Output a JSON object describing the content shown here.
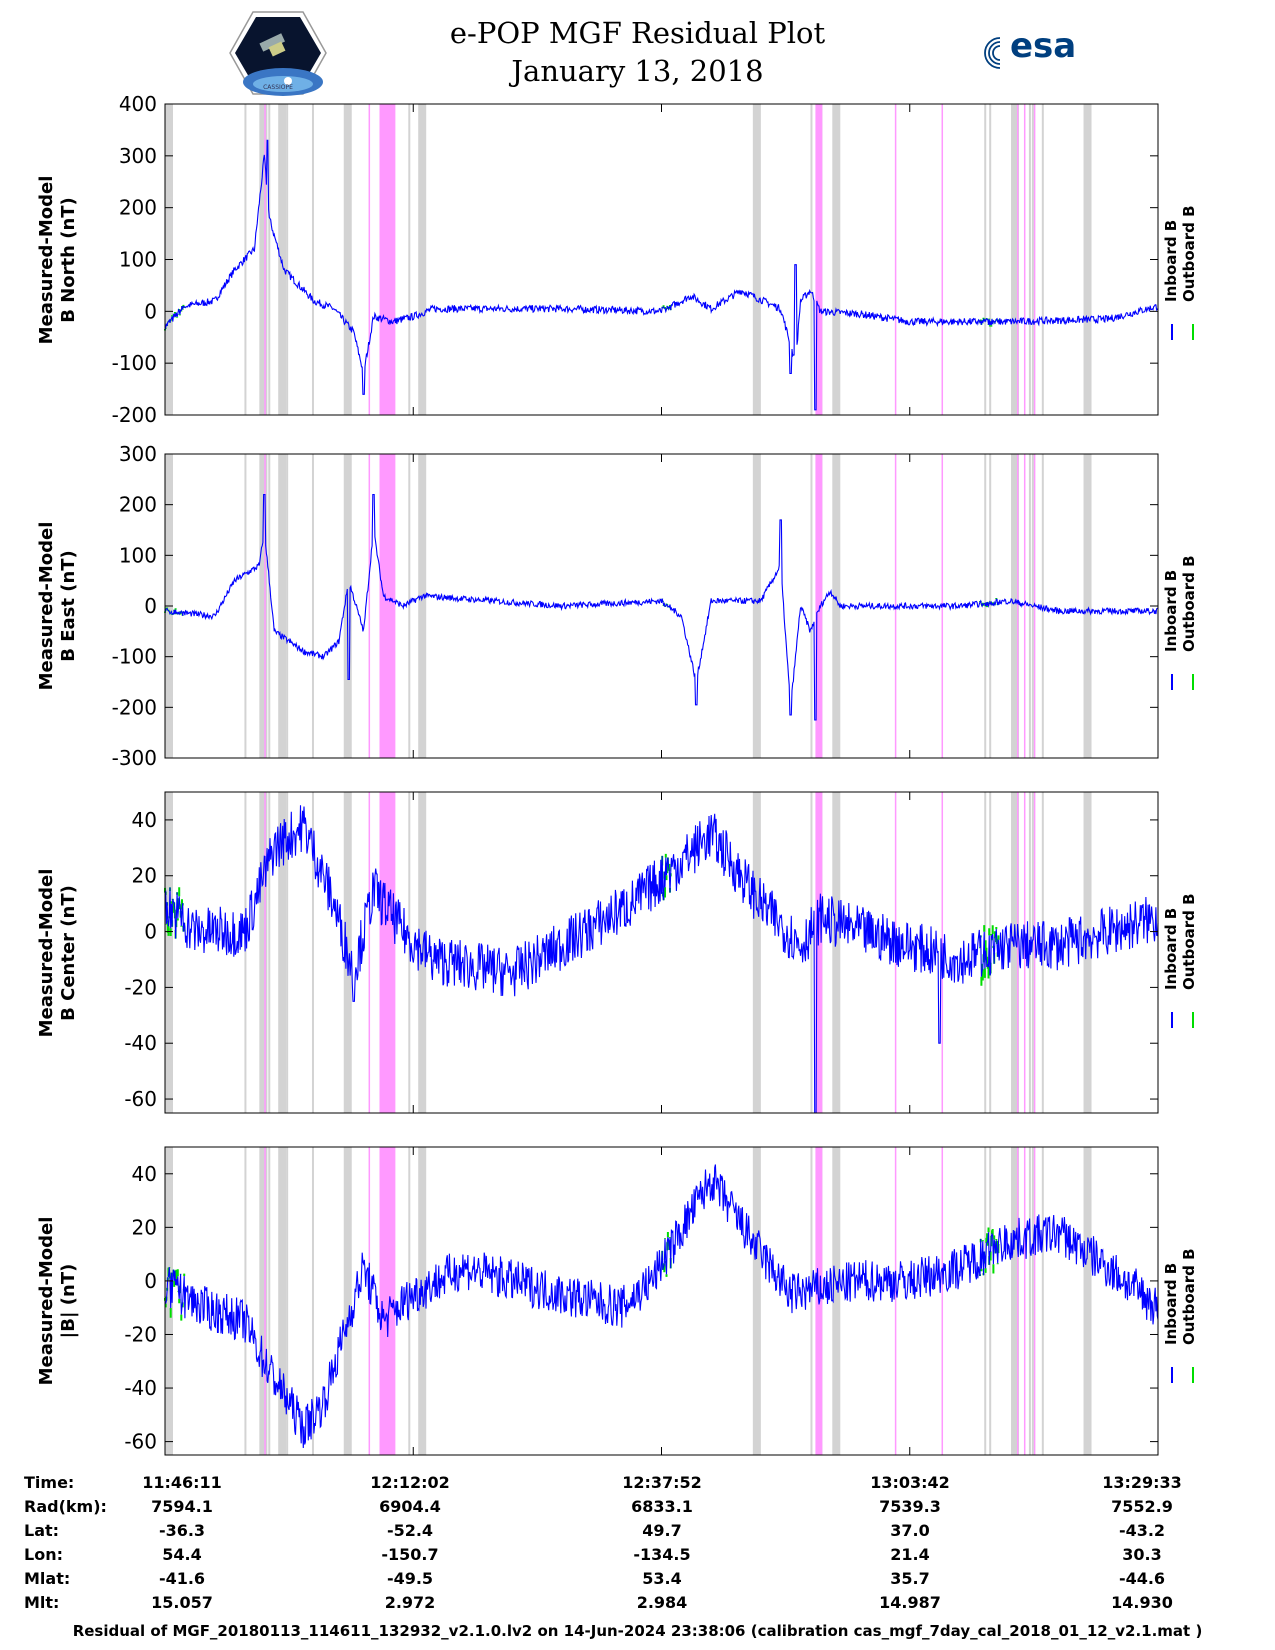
{
  "header": {
    "title_line1": "e-POP MGF Residual Plot",
    "title_line2": "January 13, 2018",
    "left_logo_text": "CASSIOPE",
    "right_logo_text": "esa"
  },
  "legend": {
    "inboard": "Inboard B",
    "outboard": "Outboard B"
  },
  "colors": {
    "inboard": "#0000ff",
    "outboard": "#00dd00",
    "gray_band": "#d3d3d3",
    "pink_band": "#ff99ff"
  },
  "chart_data": [
    {
      "type": "line",
      "ylabel_line1": "Measured-Model",
      "ylabel_line2": "B North (nT)",
      "ylim": [
        -200,
        400
      ],
      "yticks": [
        -200,
        -100,
        0,
        100,
        200,
        300,
        400
      ],
      "ytick_labels": [
        "-200",
        "-100",
        "0",
        "100",
        "200",
        "300",
        "400"
      ],
      "baseline": [
        [
          0,
          -30
        ],
        [
          0.02,
          10
        ],
        [
          0.05,
          20
        ],
        [
          0.07,
          80
        ],
        [
          0.09,
          120
        ],
        [
          0.1,
          300
        ],
        [
          0.105,
          180
        ],
        [
          0.12,
          80
        ],
        [
          0.15,
          20
        ],
        [
          0.17,
          5
        ],
        [
          0.19,
          -40
        ],
        [
          0.2,
          -120
        ],
        [
          0.21,
          -10
        ],
        [
          0.23,
          -20
        ],
        [
          0.25,
          -10
        ],
        [
          0.27,
          5
        ],
        [
          0.4,
          5
        ],
        [
          0.5,
          0
        ],
        [
          0.53,
          30
        ],
        [
          0.55,
          5
        ],
        [
          0.58,
          40
        ],
        [
          0.62,
          5
        ],
        [
          0.635,
          -100
        ],
        [
          0.64,
          20
        ],
        [
          0.65,
          40
        ],
        [
          0.66,
          0
        ],
        [
          0.7,
          -5
        ],
        [
          0.75,
          -20
        ],
        [
          0.85,
          -20
        ],
        [
          0.95,
          -15
        ],
        [
          1,
          10
        ]
      ],
      "noise": 7,
      "spikes": [
        [
          0.103,
          330
        ],
        [
          0.2,
          -160
        ],
        [
          0.63,
          -120
        ],
        [
          0.655,
          -190
        ],
        [
          0.635,
          90
        ]
      ]
    },
    {
      "type": "line",
      "ylabel_line1": "Measured-Model",
      "ylabel_line2": "B East (nT)",
      "ylim": [
        -300,
        300
      ],
      "yticks": [
        -300,
        -200,
        -100,
        0,
        100,
        200,
        300
      ],
      "ytick_labels": [
        "-300",
        "-200",
        "-100",
        "0",
        "100",
        "200",
        "300"
      ],
      "baseline": [
        [
          0,
          -10
        ],
        [
          0.05,
          -20
        ],
        [
          0.07,
          50
        ],
        [
          0.095,
          80
        ],
        [
          0.1,
          150
        ],
        [
          0.11,
          -50
        ],
        [
          0.14,
          -90
        ],
        [
          0.16,
          -100
        ],
        [
          0.175,
          -70
        ],
        [
          0.185,
          50
        ],
        [
          0.2,
          -50
        ],
        [
          0.21,
          150
        ],
        [
          0.22,
          20
        ],
        [
          0.24,
          0
        ],
        [
          0.26,
          20
        ],
        [
          0.4,
          0
        ],
        [
          0.5,
          10
        ],
        [
          0.52,
          -20
        ],
        [
          0.535,
          -150
        ],
        [
          0.55,
          10
        ],
        [
          0.6,
          10
        ],
        [
          0.62,
          80
        ],
        [
          0.63,
          -200
        ],
        [
          0.64,
          0
        ],
        [
          0.65,
          -50
        ],
        [
          0.66,
          0
        ],
        [
          0.67,
          30
        ],
        [
          0.68,
          0
        ],
        [
          0.8,
          0
        ],
        [
          0.85,
          10
        ],
        [
          0.9,
          -10
        ],
        [
          1,
          -10
        ]
      ],
      "noise": 6,
      "spikes": [
        [
          0.1,
          220
        ],
        [
          0.21,
          220
        ],
        [
          0.535,
          -195
        ],
        [
          0.62,
          170
        ],
        [
          0.63,
          -215
        ],
        [
          0.655,
          -225
        ],
        [
          0.185,
          -145
        ]
      ]
    },
    {
      "type": "line",
      "ylabel_line1": "Measured-Model",
      "ylabel_line2": "B Center (nT)",
      "ylim": [
        -65,
        50
      ],
      "yticks": [
        -60,
        -40,
        -20,
        0,
        20,
        40
      ],
      "ytick_labels": [
        "-60",
        "-40",
        "-20",
        "0",
        "20",
        "40"
      ],
      "baseline": [
        [
          0,
          10
        ],
        [
          0.03,
          0
        ],
        [
          0.08,
          0
        ],
        [
          0.11,
          30
        ],
        [
          0.14,
          38
        ],
        [
          0.17,
          10
        ],
        [
          0.19,
          -15
        ],
        [
          0.21,
          15
        ],
        [
          0.24,
          0
        ],
        [
          0.27,
          -10
        ],
        [
          0.35,
          -15
        ],
        [
          0.4,
          -5
        ],
        [
          0.47,
          10
        ],
        [
          0.52,
          25
        ],
        [
          0.55,
          35
        ],
        [
          0.6,
          10
        ],
        [
          0.64,
          -5
        ],
        [
          0.66,
          5
        ],
        [
          0.7,
          0
        ],
        [
          0.8,
          -10
        ],
        [
          0.85,
          -5
        ],
        [
          0.9,
          -5
        ],
        [
          1,
          5
        ]
      ],
      "noise": 9,
      "spikes": [
        [
          0.655,
          -65
        ],
        [
          0.78,
          -40
        ],
        [
          0.19,
          -25
        ]
      ]
    },
    {
      "type": "line",
      "ylabel_line1": "Measured-Model",
      "ylabel_line2": "|B| (nT)",
      "ylim": [
        -65,
        50
      ],
      "yticks": [
        -60,
        -40,
        -20,
        0,
        20,
        40
      ],
      "ytick_labels": [
        "-60",
        "-40",
        "-20",
        "0",
        "20",
        "40"
      ],
      "baseline": [
        [
          0,
          -2
        ],
        [
          0.04,
          -10
        ],
        [
          0.08,
          -15
        ],
        [
          0.1,
          -30
        ],
        [
          0.14,
          -55
        ],
        [
          0.16,
          -45
        ],
        [
          0.2,
          5
        ],
        [
          0.22,
          -15
        ],
        [
          0.25,
          -5
        ],
        [
          0.3,
          5
        ],
        [
          0.35,
          0
        ],
        [
          0.4,
          -5
        ],
        [
          0.46,
          -10
        ],
        [
          0.49,
          0
        ],
        [
          0.55,
          38
        ],
        [
          0.6,
          10
        ],
        [
          0.63,
          -5
        ],
        [
          0.7,
          0
        ],
        [
          0.75,
          0
        ],
        [
          0.8,
          5
        ],
        [
          0.85,
          15
        ],
        [
          0.9,
          18
        ],
        [
          0.95,
          5
        ],
        [
          1,
          -10
        ]
      ],
      "noise": 8,
      "spikes": []
    }
  ],
  "bands": {
    "gray": [
      0.0,
      0.095,
      0.114,
      0.18,
      0.255,
      0.592,
      0.672,
      0.925,
      0.852
    ],
    "pink": [
      [
        0.216,
        0.232
      ],
      [
        0.655,
        0.662
      ]
    ],
    "thin_gray": [
      0.08,
      0.104,
      0.122,
      0.148,
      0.245,
      0.65,
      0.66,
      0.825,
      0.83,
      0.87,
      0.873,
      0.883,
      0.855
    ],
    "thin_pink": [
      0.1,
      0.205,
      0.735,
      0.782,
      0.858,
      0.865,
      0.875
    ]
  },
  "time_table": {
    "rows": [
      {
        "label": "Time:",
        "values": [
          "11:46:11",
          "12:12:02",
          "12:37:52",
          "13:03:42",
          "13:29:33"
        ]
      },
      {
        "label": "Rad(km):",
        "values": [
          "7594.1",
          "6904.4",
          "6833.1",
          "7539.3",
          "7552.9"
        ]
      },
      {
        "label": "Lat:",
        "values": [
          "-36.3",
          "-52.4",
          "49.7",
          "37.0",
          "-43.2"
        ]
      },
      {
        "label": "Lon:",
        "values": [
          "54.4",
          "-150.7",
          "-134.5",
          "21.4",
          "30.3"
        ]
      },
      {
        "label": "Mlat:",
        "values": [
          "-41.6",
          "-49.5",
          "53.4",
          "35.7",
          "-44.6"
        ]
      },
      {
        "label": "Mlt:",
        "values": [
          "15.057",
          "2.972",
          "2.984",
          "14.987",
          "14.930"
        ]
      }
    ]
  },
  "footer": "Residual of MGF_20180113_114611_132932_v2.1.0.lv2 on 14-Jun-2024 23:38:06 (calibration cas_mgf_7day_cal_2018_01_12_v2.1.mat )"
}
